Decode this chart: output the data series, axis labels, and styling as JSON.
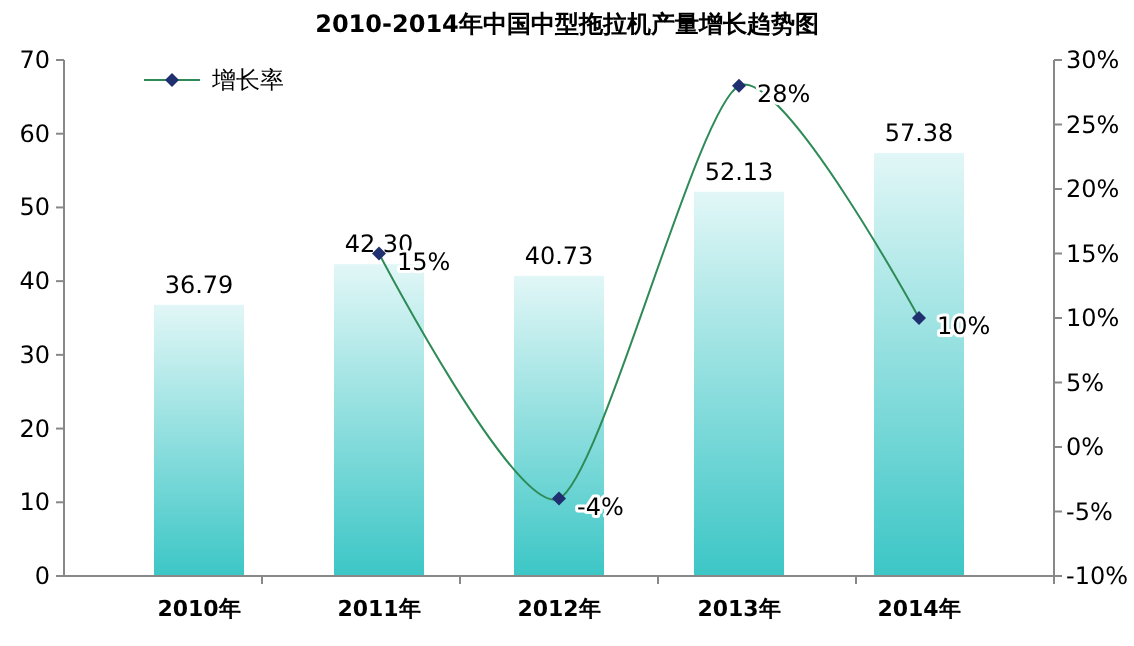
{
  "chart_data": {
    "type": "bar",
    "title": "2010-2014年中国中型拖拉机产量增长趋势图",
    "categories": [
      "2010年",
      "2011年",
      "2012年",
      "2013年",
      "2014年"
    ],
    "series": [
      {
        "type": "bar",
        "color": "#3cc6c6",
        "values": [
          36.79,
          42.3,
          40.73,
          52.13,
          57.38
        ],
        "value_labels": [
          "36.79",
          "42.30",
          "40.73",
          "52.13",
          "57.38"
        ]
      },
      {
        "type": "line",
        "name": "增长率",
        "axis": "y2",
        "color": "#2e8b57",
        "values": [
          null,
          15,
          -4,
          28,
          10
        ],
        "value_labels": [
          null,
          "15%",
          "-4%",
          "28%",
          "10%"
        ]
      }
    ],
    "ylim": [
      0,
      70
    ],
    "yticks": [
      0,
      10,
      20,
      30,
      40,
      50,
      60,
      70
    ],
    "y2lim": [
      -10,
      30
    ],
    "y2ticks": [
      {
        "value": -10,
        "label": "-10%"
      },
      {
        "value": -5,
        "label": "-5%"
      },
      {
        "value": 0,
        "label": "0%"
      },
      {
        "value": 5,
        "label": "5%"
      },
      {
        "value": 10,
        "label": "10%"
      },
      {
        "value": 15,
        "label": "15%"
      },
      {
        "value": 20,
        "label": "20%"
      },
      {
        "value": 25,
        "label": "25%"
      },
      {
        "value": 30,
        "label": "30%"
      }
    ],
    "marker": "diamond",
    "legend": "top left",
    "grid": false
  }
}
